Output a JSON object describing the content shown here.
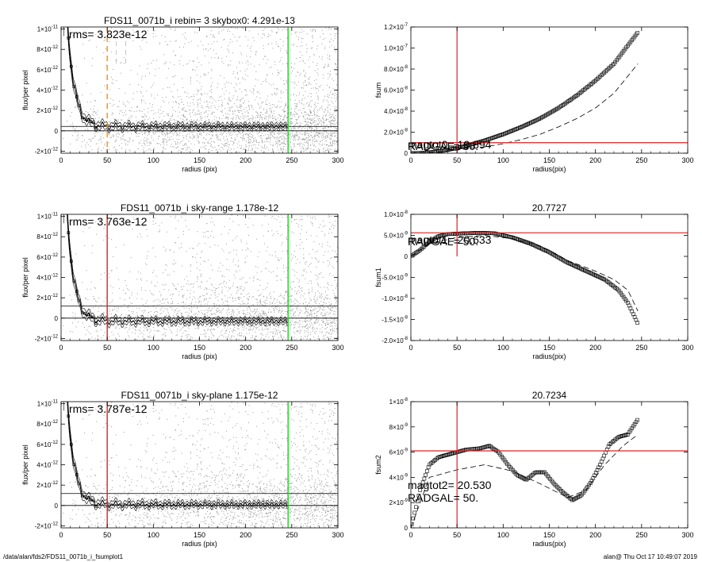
{
  "colors": {
    "axis": "#000000",
    "scatter": "#9a9a9a",
    "red": "#dd2222",
    "green": "#22cc22",
    "orange": "#ff8c00",
    "profile": "#000000"
  },
  "footer": {
    "path": "/data/alan/fds2/FDS11_0071b_i_fsumplot1",
    "user_time": "alan@  Thu Oct 17 10:49:07 2019"
  },
  "chart_data": [
    {
      "type": "scatter",
      "panel": "left-top",
      "title": "FDS11_0071b_i rebin= 3    skybox0:  4.291e-13",
      "xlabel": "radius (pix)",
      "ylabel": "flux/per pixel",
      "xlim": [
        0,
        300
      ],
      "ylim": [
        -2.2e-12,
        1.02e-11
      ],
      "xticks": [
        "0",
        "50",
        "100",
        "150",
        "200",
        "250",
        "300"
      ],
      "yticks": [
        {
          "v": 1e-11,
          "m": "1×10",
          "e": "-11"
        },
        {
          "v": 8e-12,
          "m": "8×10",
          "e": "-12"
        },
        {
          "v": 6e-12,
          "m": "6×10",
          "e": "-12"
        },
        {
          "v": 4e-12,
          "m": "4×10",
          "e": "-12"
        },
        {
          "v": 2e-12,
          "m": "2×10",
          "e": "-12"
        },
        {
          "v": 0,
          "m": "0",
          "e": ""
        },
        {
          "v": -2e-12,
          "m": "-2×10",
          "e": "-12"
        }
      ],
      "annotation": "rms= 3.823e-12",
      "hlines": [
        0,
        4.3e-13
      ],
      "vlines": [
        {
          "x": 50,
          "color": "orange",
          "style": "dashed"
        },
        {
          "x": 60,
          "color": "gray",
          "style": "dashed"
        },
        {
          "x": 70,
          "color": "gray",
          "style": "dashed"
        },
        {
          "x": 246,
          "color": "green",
          "style": "solid"
        }
      ],
      "profile_offset": 4.3e-13
    },
    {
      "type": "line",
      "panel": "right-top",
      "title": "",
      "xlabel": "radius(pix)",
      "ylabel": "fsum",
      "xlim": [
        0,
        300
      ],
      "ylim": [
        0,
        1.2e-07
      ],
      "xticks": [
        "0",
        "50",
        "100",
        "150",
        "200",
        "250",
        "300"
      ],
      "yticks": [
        {
          "v": 1.2e-07,
          "m": "1.2×10",
          "e": "-7"
        },
        {
          "v": 1e-07,
          "m": "1.0×10",
          "e": "-7"
        },
        {
          "v": 8e-08,
          "m": "8.0×10",
          "e": "-8"
        },
        {
          "v": 6e-08,
          "m": "6.0×10",
          "e": "-8"
        },
        {
          "v": 4e-08,
          "m": "4.0×10",
          "e": "-8"
        },
        {
          "v": 2e-08,
          "m": "2.0×10",
          "e": "-8"
        },
        {
          "v": 0,
          "m": "0",
          "e": ""
        }
      ],
      "annotation1": "magtot0=  19.894",
      "annotation2": "RADGAL=     50.",
      "ref_x": 50,
      "ref_y": 1e-08,
      "curve_points": [
        [
          0,
          0
        ],
        [
          10,
          2e-10
        ],
        [
          20,
          8e-10
        ],
        [
          30,
          1.8e-09
        ],
        [
          40,
          3.2e-09
        ],
        [
          50,
          5e-09
        ],
        [
          60,
          7e-09
        ],
        [
          80,
          1.2e-08
        ],
        [
          100,
          1.8e-08
        ],
        [
          120,
          2.5e-08
        ],
        [
          140,
          3.3e-08
        ],
        [
          160,
          4.3e-08
        ],
        [
          180,
          5.5e-08
        ],
        [
          200,
          6.9e-08
        ],
        [
          220,
          8.5e-08
        ],
        [
          246,
          1.15e-07
        ]
      ],
      "dashed_points": [
        [
          0,
          0
        ],
        [
          20,
          6e-10
        ],
        [
          50,
          3e-09
        ],
        [
          80,
          6e-09
        ],
        [
          100,
          9e-09
        ],
        [
          120,
          1.3e-08
        ],
        [
          140,
          1.8e-08
        ],
        [
          160,
          2.5e-08
        ],
        [
          180,
          3.3e-08
        ],
        [
          200,
          4.3e-08
        ],
        [
          220,
          5.7e-08
        ],
        [
          246,
          8.5e-08
        ]
      ]
    },
    {
      "type": "scatter",
      "panel": "left-middle",
      "title": "FDS11_0071b_i sky-range  1.178e-12",
      "xlabel": "radius (pix)",
      "ylabel": "flux/per pixel",
      "xlim": [
        0,
        300
      ],
      "ylim": [
        -2.2e-12,
        1.02e-11
      ],
      "xticks": [
        "0",
        "50",
        "100",
        "150",
        "200",
        "250",
        "300"
      ],
      "yticks": [
        {
          "v": 1e-11,
          "m": "1×10",
          "e": "-11"
        },
        {
          "v": 8e-12,
          "m": "8×10",
          "e": "-12"
        },
        {
          "v": 6e-12,
          "m": "6×10",
          "e": "-12"
        },
        {
          "v": 4e-12,
          "m": "4×10",
          "e": "-12"
        },
        {
          "v": 2e-12,
          "m": "2×10",
          "e": "-12"
        },
        {
          "v": 0,
          "m": "0",
          "e": ""
        },
        {
          "v": -2e-12,
          "m": "-2×10",
          "e": "-12"
        }
      ],
      "annotation": "rms= 3.763e-12",
      "hlines": [
        0,
        1.18e-12
      ],
      "vlines": [
        {
          "x": 50,
          "color": "red",
          "style": "solid"
        },
        {
          "x": 246,
          "color": "green",
          "style": "solid"
        }
      ],
      "profile_offset": -3e-13
    },
    {
      "type": "line",
      "panel": "right-middle",
      "title": "20.7727",
      "xlabel": "radius(pix)",
      "ylabel": "fsum1",
      "xlim": [
        0,
        300
      ],
      "ylim": [
        -2e-08,
        1e-08
      ],
      "xticks": [
        "0",
        "50",
        "100",
        "150",
        "200",
        "250",
        "300"
      ],
      "yticks": [
        {
          "v": 1e-08,
          "m": "1.0×10",
          "e": "-8"
        },
        {
          "v": 5e-09,
          "m": "5.0×10",
          "e": "-9"
        },
        {
          "v": 0,
          "m": "0",
          "e": ""
        },
        {
          "v": -5e-09,
          "m": "-5.0×10",
          "e": "-9"
        },
        {
          "v": -1e-08,
          "m": "-1.0×10",
          "e": "-8"
        },
        {
          "v": -1.5e-08,
          "m": "-1.5×10",
          "e": "-8"
        },
        {
          "v": -2e-08,
          "m": "-2.0×10",
          "e": "-8"
        }
      ],
      "annotation1": "magtot1=  20.633",
      "annotation2": "RADGAL=     50.",
      "ref_x": 50,
      "ref_y": 5.6e-09,
      "curve_points": [
        [
          0,
          0
        ],
        [
          10,
          1.5e-09
        ],
        [
          20,
          3.5e-09
        ],
        [
          30,
          4.8e-09
        ],
        [
          40,
          5.3e-09
        ],
        [
          50,
          5.4e-09
        ],
        [
          60,
          5.5e-09
        ],
        [
          75,
          5.6e-09
        ],
        [
          90,
          5.5e-09
        ],
        [
          110,
          4.5e-09
        ],
        [
          130,
          3e-09
        ],
        [
          150,
          1e-09
        ],
        [
          170,
          -1.5e-09
        ],
        [
          190,
          -3.5e-09
        ],
        [
          210,
          -5.5e-09
        ],
        [
          225,
          -8e-09
        ],
        [
          235,
          -1.1e-08
        ],
        [
          246,
          -1.6e-08
        ]
      ],
      "dashed_points": [
        [
          0,
          0
        ],
        [
          20,
          3e-09
        ],
        [
          50,
          4.5e-09
        ],
        [
          80,
          5e-09
        ],
        [
          110,
          4.2e-09
        ],
        [
          140,
          2.5e-09
        ],
        [
          170,
          -1e-09
        ],
        [
          200,
          -3.5e-09
        ],
        [
          220,
          -5.5e-09
        ],
        [
          235,
          -8e-09
        ],
        [
          246,
          -1.3e-08
        ]
      ]
    },
    {
      "type": "scatter",
      "panel": "left-bottom",
      "title": "FDS11_0071b_i sky-plane  1.175e-12",
      "xlabel": "radius (pix)",
      "ylabel": "flux/per pixel",
      "xlim": [
        0,
        300
      ],
      "ylim": [
        -2.2e-12,
        1.02e-11
      ],
      "xticks": [
        "0",
        "50",
        "100",
        "150",
        "200",
        "250",
        "300"
      ],
      "yticks": [
        {
          "v": 1e-11,
          "m": "1×10",
          "e": "-11"
        },
        {
          "v": 8e-12,
          "m": "8×10",
          "e": "-12"
        },
        {
          "v": 6e-12,
          "m": "6×10",
          "e": "-12"
        },
        {
          "v": 4e-12,
          "m": "4×10",
          "e": "-12"
        },
        {
          "v": 2e-12,
          "m": "2×10",
          "e": "-12"
        },
        {
          "v": 0,
          "m": "0",
          "e": ""
        },
        {
          "v": -2e-12,
          "m": "-2×10",
          "e": "-12"
        }
      ],
      "annotation": "rms= 3.787e-12",
      "hlines": [
        0,
        1.175e-12
      ],
      "vlines": [
        {
          "x": 50,
          "color": "red",
          "style": "solid"
        },
        {
          "x": 246,
          "color": "green",
          "style": "solid"
        }
      ],
      "profile_offset": 1e-13
    },
    {
      "type": "line",
      "panel": "right-bottom",
      "title": "20.7234",
      "xlabel": "radius(pix)",
      "ylabel": "fsum2",
      "xlim": [
        0,
        300
      ],
      "ylim": [
        0,
        1e-08
      ],
      "xticks": [
        "0",
        "50",
        "100",
        "150",
        "200",
        "250",
        "300"
      ],
      "yticks": [
        {
          "v": 1e-08,
          "m": "1×10",
          "e": "-8"
        },
        {
          "v": 8e-09,
          "m": "8×10",
          "e": "-9"
        },
        {
          "v": 6e-09,
          "m": "6×10",
          "e": "-9"
        },
        {
          "v": 4e-09,
          "m": "4×10",
          "e": "-9"
        },
        {
          "v": 2e-09,
          "m": "2×10",
          "e": "-9"
        },
        {
          "v": 0,
          "m": "0",
          "e": ""
        }
      ],
      "annotation1": "magtot2=  20.530",
      "annotation2": "RADGAL=     50.",
      "ref_x": 50,
      "ref_y": 6.1e-09,
      "curve_points": [
        [
          0,
          0
        ],
        [
          10,
          3e-09
        ],
        [
          20,
          5e-09
        ],
        [
          30,
          5.6e-09
        ],
        [
          40,
          5.8e-09
        ],
        [
          50,
          6e-09
        ],
        [
          60,
          6.2e-09
        ],
        [
          75,
          6.3e-09
        ],
        [
          85,
          6.5e-09
        ],
        [
          95,
          6e-09
        ],
        [
          105,
          5e-09
        ],
        [
          115,
          4.2e-09
        ],
        [
          125,
          3.8e-09
        ],
        [
          135,
          4.4e-09
        ],
        [
          145,
          4.4e-09
        ],
        [
          155,
          3.5e-09
        ],
        [
          165,
          2.8e-09
        ],
        [
          175,
          2.2e-09
        ],
        [
          185,
          2.6e-09
        ],
        [
          195,
          3.6e-09
        ],
        [
          205,
          5e-09
        ],
        [
          215,
          6.6e-09
        ],
        [
          225,
          7.2e-09
        ],
        [
          235,
          7.4e-09
        ],
        [
          246,
          8.6e-09
        ]
      ],
      "dashed_points": [
        [
          0,
          0
        ],
        [
          20,
          4e-09
        ],
        [
          50,
          4.6e-09
        ],
        [
          80,
          5e-09
        ],
        [
          110,
          4.5e-09
        ],
        [
          140,
          3.5e-09
        ],
        [
          170,
          2.4e-09
        ],
        [
          190,
          3e-09
        ],
        [
          210,
          5e-09
        ],
        [
          230,
          6.5e-09
        ],
        [
          246,
          7.4e-09
        ]
      ]
    }
  ]
}
